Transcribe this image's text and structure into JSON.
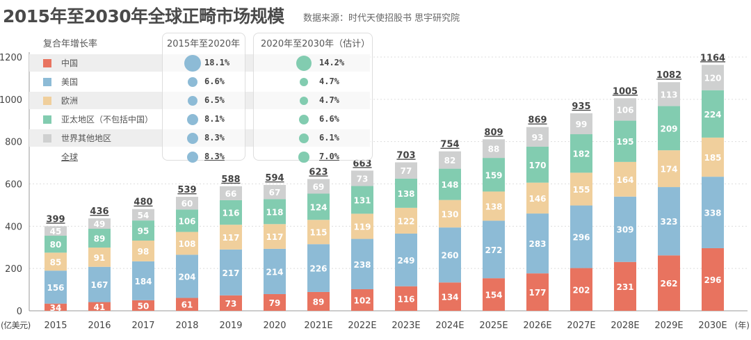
{
  "title": "2015年至2030年全球正畸市场规模",
  "source": "数据来源：时代天使招股书  思宇研究院",
  "colors": {
    "中国": "#e8735f",
    "美国": "#8dbbd6",
    "欧洲": "#f0cf9c",
    "亚太地区": "#82ccb0",
    "世界其他地区": "#cfd0d0",
    "dot1": "#8dbbd6",
    "dot2": "#82ccb0"
  },
  "legend": {
    "header": "复合年增长率",
    "col1": "2015年至2020年",
    "col2": "2020年至2030年（估计）",
    "rows": [
      {
        "name": "中国",
        "cagr1": "18.1%",
        "cagr2": "14.2%",
        "v1": 18.1,
        "v2": 14.2
      },
      {
        "name": "美国",
        "cagr1": "6.6%",
        "cagr2": "4.7%",
        "v1": 6.6,
        "v2": 4.7
      },
      {
        "name": "欧洲",
        "cagr1": "6.5%",
        "cagr2": "4.7%",
        "v1": 6.5,
        "v2": 4.7
      },
      {
        "name": "亚太地区（不包括中国）",
        "cagr1": "8.1%",
        "cagr2": "6.6%",
        "v1": 8.1,
        "v2": 6.6
      },
      {
        "name": "世界其他地区",
        "cagr1": "8.3%",
        "cagr2": "6.1%",
        "v1": 8.3,
        "v2": 6.1
      },
      {
        "name": "全球",
        "cagr1": "8.3%",
        "cagr2": "7.0%",
        "v1": 8.3,
        "v2": 7.0
      }
    ]
  },
  "chart_data": {
    "type": "bar",
    "stacked": true,
    "title": "2015年至2030年全球正畸市场规模",
    "ylabel": "(亿美元)",
    "xlabel": "(年)",
    "ylim": [
      0,
      1200
    ],
    "yticks": [
      0,
      200,
      400,
      600,
      800,
      1000,
      1200
    ],
    "grid": true,
    "categories": [
      "2015",
      "2016",
      "2017",
      "2018",
      "2019",
      "2020",
      "2021E",
      "2022E",
      "2023E",
      "2024E",
      "2025E",
      "2026E",
      "2027E",
      "2028E",
      "2029E",
      "2030E"
    ],
    "series": [
      {
        "name": "中国",
        "values": [
          34,
          41,
          50,
          61,
          73,
          79,
          89,
          102,
          116,
          134,
          154,
          177,
          202,
          231,
          262,
          296
        ]
      },
      {
        "name": "美国",
        "values": [
          156,
          167,
          184,
          204,
          217,
          214,
          226,
          238,
          249,
          260,
          272,
          283,
          296,
          309,
          323,
          338
        ]
      },
      {
        "name": "欧洲",
        "values": [
          85,
          91,
          98,
          108,
          117,
          117,
          115,
          119,
          122,
          130,
          138,
          146,
          155,
          164,
          174,
          185
        ]
      },
      {
        "name": "亚太地区（不包括中国）",
        "values": [
          80,
          89,
          95,
          106,
          116,
          118,
          124,
          131,
          138,
          148,
          159,
          170,
          182,
          195,
          209,
          224
        ]
      },
      {
        "name": "世界其他地区",
        "values": [
          45,
          49,
          54,
          60,
          66,
          67,
          69,
          73,
          77,
          82,
          88,
          93,
          99,
          106,
          113,
          120
        ]
      }
    ],
    "totals": [
      399,
      436,
      480,
      539,
      588,
      594,
      623,
      663,
      703,
      754,
      809,
      869,
      935,
      1005,
      1082,
      1164
    ]
  }
}
